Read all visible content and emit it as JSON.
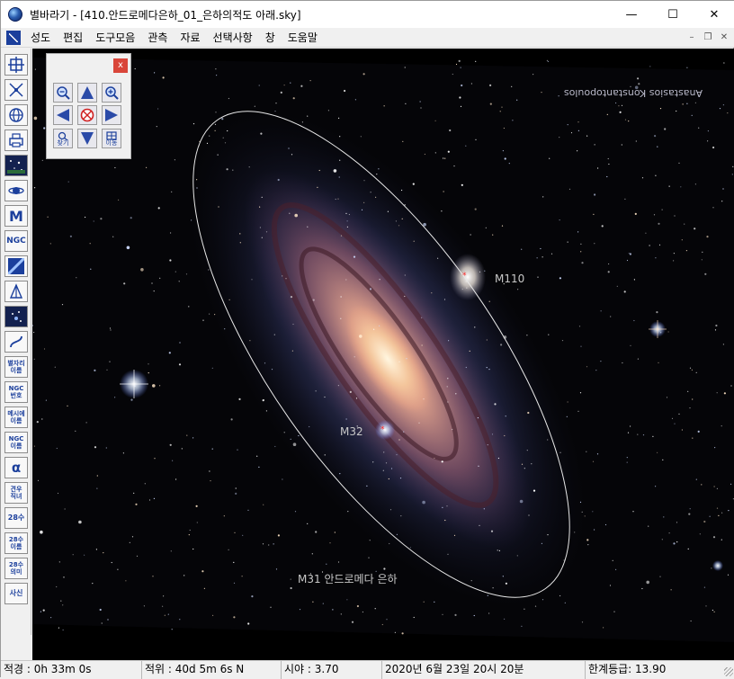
{
  "window": {
    "title": "별바라기 - [410.안드로메다은하_01_은하의적도 아래.sky]",
    "controls": {
      "minimize": "—",
      "maximize": "☐",
      "close": "✕"
    }
  },
  "menu": {
    "items": [
      "성도",
      "편집",
      "도구모음",
      "관측",
      "자료",
      "선택사항",
      "창",
      "도움말"
    ],
    "mdi": {
      "minimize": "–",
      "restore": "❐",
      "close": "✕"
    }
  },
  "toolbar": {
    "text_buttons": {
      "m": "M",
      "ngc": "NGC",
      "star_name": [
        "별자리",
        "이름"
      ],
      "ngc_number": [
        "NGC",
        "번호"
      ],
      "messier_name": [
        "메시에",
        "이름"
      ],
      "ngc_name": [
        "NGC",
        "이름"
      ],
      "alpha": "α",
      "altair_vega": [
        "견우",
        "직녀"
      ],
      "mansions": "28수",
      "mansion_name": [
        "28수",
        "이름"
      ],
      "mansion_meaning": [
        "28수",
        "의미"
      ],
      "four_gods": "사신"
    }
  },
  "navigator": {
    "close": "x",
    "find_label": "찾기",
    "move_label": "이동"
  },
  "sky": {
    "watermark": "Anastasios Konstantopoulos",
    "labels": {
      "m110": "M110",
      "m32": "M32",
      "m31": "M31 안드로메다 은하"
    }
  },
  "status": {
    "ra": "적경 : 0h 33m  0s",
    "dec": "적위 : 40d  5m  6s N",
    "fov": "시야 :  3.70",
    "datetime": "2020년  6월 23일 20시 20분",
    "limit_mag": "한계등급: 13.90"
  },
  "colors": {
    "ellipse": "#e8e8e8",
    "label": "#c8c8c8",
    "marker": "#ff2a2a",
    "toolbar_blue": "#1b3f9c"
  }
}
